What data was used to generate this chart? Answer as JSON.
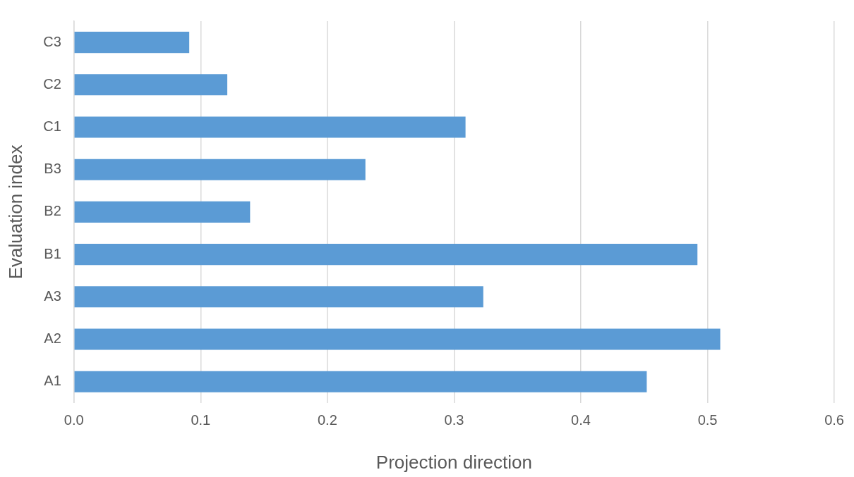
{
  "chart_data": {
    "type": "bar",
    "orientation": "horizontal",
    "xlabel": "Projection direction",
    "ylabel": "Evaluation index",
    "categories": [
      "C3",
      "C2",
      "C1",
      "B3",
      "B2",
      "B1",
      "A3",
      "A2",
      "A1"
    ],
    "values": [
      0.091,
      0.121,
      0.309,
      0.23,
      0.139,
      0.492,
      0.323,
      0.51,
      0.452
    ],
    "color": "#5b9bd5",
    "xlim": [
      0,
      0.6
    ],
    "xticks": [
      {
        "value": 0,
        "label": "0.0"
      },
      {
        "value": 0.1,
        "label": "0.1"
      },
      {
        "value": 0.2,
        "label": "0.2"
      },
      {
        "value": 0.3,
        "label": "0.3"
      },
      {
        "value": 0.4,
        "label": "0.4"
      },
      {
        "value": 0.5,
        "label": "0.5"
      },
      {
        "value": 0.6,
        "label": "0.6"
      }
    ],
    "grid": "x",
    "legend": false
  }
}
